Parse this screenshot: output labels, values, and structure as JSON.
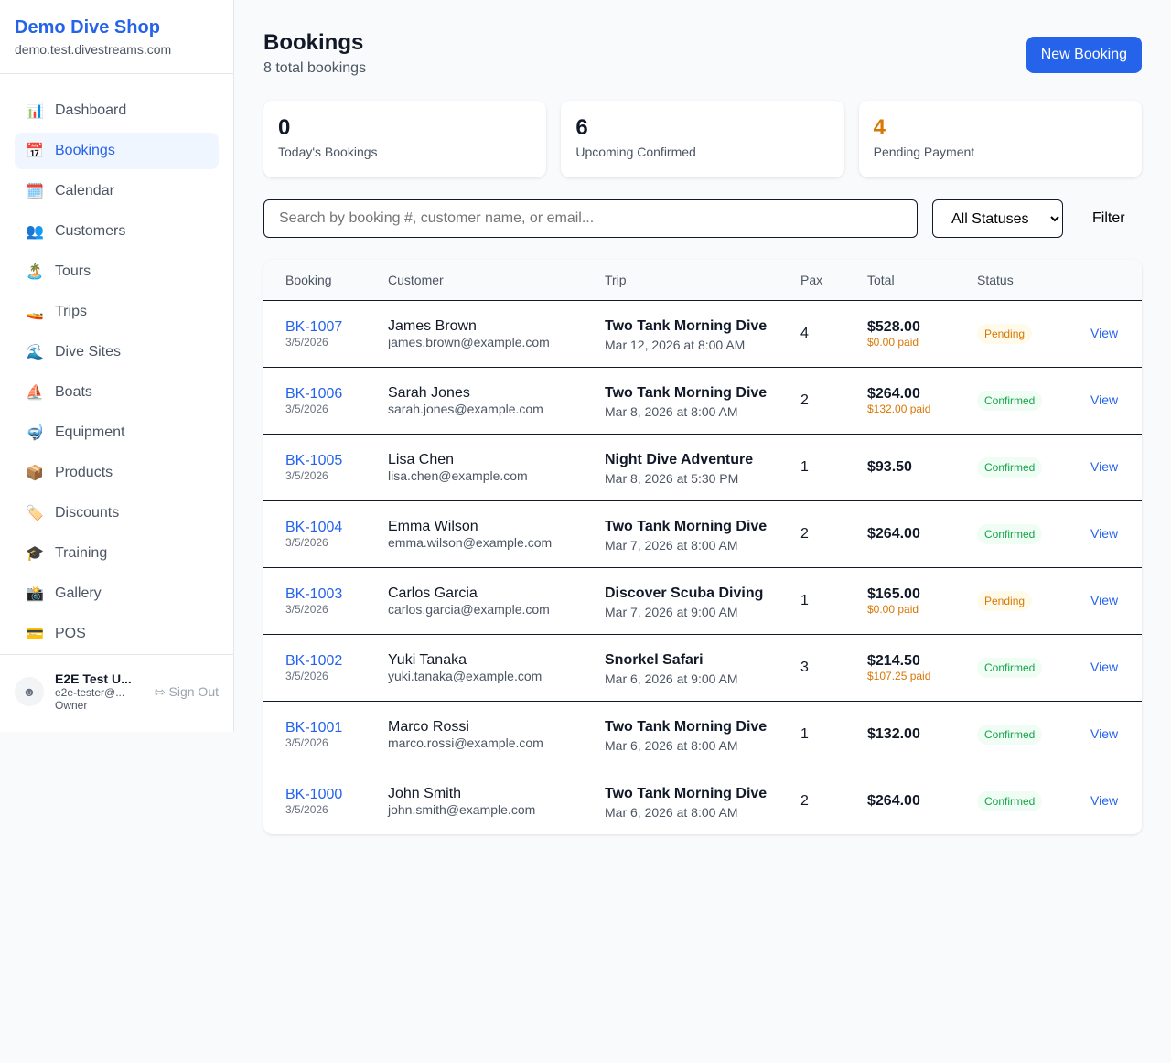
{
  "sidebar": {
    "brand": "Demo Dive Shop",
    "domain": "demo.test.divestreams.com",
    "items": [
      {
        "label": "Dashboard",
        "icon": "📊"
      },
      {
        "label": "Bookings",
        "icon": "📅",
        "active": true
      },
      {
        "label": "Calendar",
        "icon": "🗓️"
      },
      {
        "label": "Customers",
        "icon": "👥"
      },
      {
        "label": "Tours",
        "icon": "🏝️"
      },
      {
        "label": "Trips",
        "icon": "🚤"
      },
      {
        "label": "Dive Sites",
        "icon": "🌊"
      },
      {
        "label": "Boats",
        "icon": "⛵"
      },
      {
        "label": "Equipment",
        "icon": "🤿"
      },
      {
        "label": "Products",
        "icon": "📦"
      },
      {
        "label": "Discounts",
        "icon": "🏷️"
      },
      {
        "label": "Training",
        "icon": "🎓"
      },
      {
        "label": "Gallery",
        "icon": "📸"
      },
      {
        "label": "POS",
        "icon": "💳"
      }
    ],
    "user": {
      "name": "E2E Test U...",
      "email": "e2e-tester@...",
      "role": "Owner",
      "sign_out": "Sign Out"
    }
  },
  "header": {
    "title": "Bookings",
    "subtitle": "8 total bookings",
    "new_button": "New Booking"
  },
  "stats": [
    {
      "value": "0",
      "label": "Today's Bookings",
      "color": "#111827"
    },
    {
      "value": "6",
      "label": "Upcoming Confirmed",
      "color": "#111827"
    },
    {
      "value": "4",
      "label": "Pending Payment",
      "color": "#d97706"
    }
  ],
  "filters": {
    "search_placeholder": "Search by booking #, customer name, or email...",
    "status_selected": "All Statuses",
    "filter_button": "Filter"
  },
  "table": {
    "headers": [
      "Booking",
      "Customer",
      "Trip",
      "Pax",
      "Total",
      "Status",
      ""
    ],
    "rows": [
      {
        "id": "BK-1007",
        "date": "3/5/2026",
        "name": "James Brown",
        "email": "james.brown@example.com",
        "trip": "Two Tank Morning Dive",
        "trip_date": "Mar 12, 2026 at 8:00 AM",
        "pax": "4",
        "total": "$528.00",
        "paid": "$0.00 paid",
        "status": "Pending",
        "action": "View"
      },
      {
        "id": "BK-1006",
        "date": "3/5/2026",
        "name": "Sarah Jones",
        "email": "sarah.jones@example.com",
        "trip": "Two Tank Morning Dive",
        "trip_date": "Mar 8, 2026 at 8:00 AM",
        "pax": "2",
        "total": "$264.00",
        "paid": "$132.00 paid",
        "status": "Confirmed",
        "action": "View"
      },
      {
        "id": "BK-1005",
        "date": "3/5/2026",
        "name": "Lisa Chen",
        "email": "lisa.chen@example.com",
        "trip": "Night Dive Adventure",
        "trip_date": "Mar 8, 2026 at 5:30 PM",
        "pax": "1",
        "total": "$93.50",
        "paid": null,
        "status": "Confirmed",
        "action": "View"
      },
      {
        "id": "BK-1004",
        "date": "3/5/2026",
        "name": "Emma Wilson",
        "email": "emma.wilson@example.com",
        "trip": "Two Tank Morning Dive",
        "trip_date": "Mar 7, 2026 at 8:00 AM",
        "pax": "2",
        "total": "$264.00",
        "paid": null,
        "status": "Confirmed",
        "action": "View"
      },
      {
        "id": "BK-1003",
        "date": "3/5/2026",
        "name": "Carlos Garcia",
        "email": "carlos.garcia@example.com",
        "trip": "Discover Scuba Diving",
        "trip_date": "Mar 7, 2026 at 9:00 AM",
        "pax": "1",
        "total": "$165.00",
        "paid": "$0.00 paid",
        "status": "Pending",
        "action": "View"
      },
      {
        "id": "BK-1002",
        "date": "3/5/2026",
        "name": "Yuki Tanaka",
        "email": "yuki.tanaka@example.com",
        "trip": "Snorkel Safari",
        "trip_date": "Mar 6, 2026 at 9:00 AM",
        "pax": "3",
        "total": "$214.50",
        "paid": "$107.25 paid",
        "status": "Confirmed",
        "action": "View"
      },
      {
        "id": "BK-1001",
        "date": "3/5/2026",
        "name": "Marco Rossi",
        "email": "marco.rossi@example.com",
        "trip": "Two Tank Morning Dive",
        "trip_date": "Mar 6, 2026 at 8:00 AM",
        "pax": "1",
        "total": "$132.00",
        "paid": null,
        "status": "Confirmed",
        "action": "View"
      },
      {
        "id": "BK-1000",
        "date": "3/5/2026",
        "name": "John Smith",
        "email": "john.smith@example.com",
        "trip": "Two Tank Morning Dive",
        "trip_date": "Mar 6, 2026 at 8:00 AM",
        "pax": "2",
        "total": "$264.00",
        "paid": null,
        "status": "Confirmed",
        "action": "View"
      }
    ]
  }
}
